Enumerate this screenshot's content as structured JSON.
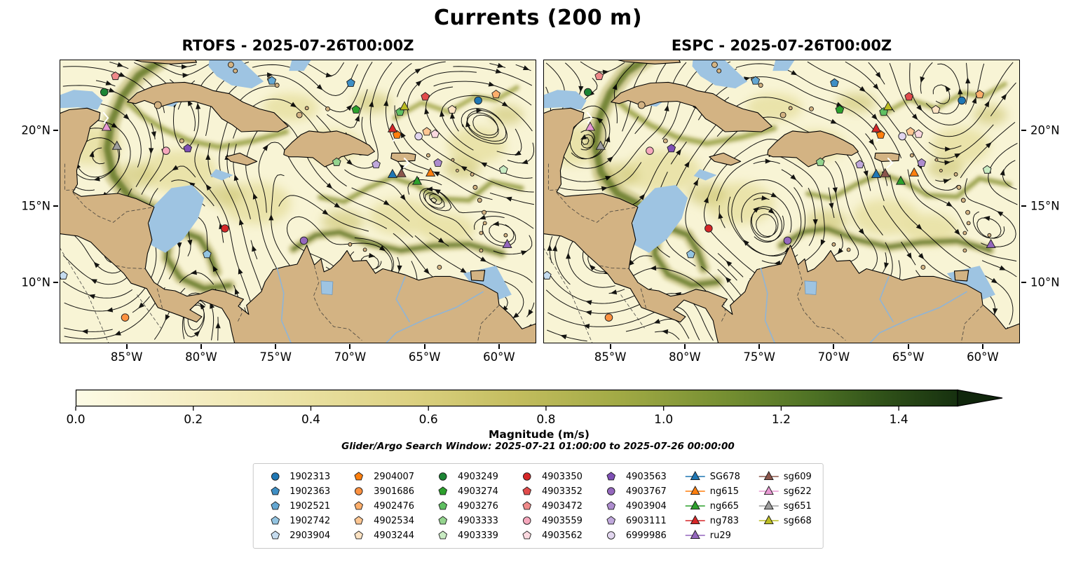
{
  "title": "Currents (200 m)",
  "panels": [
    {
      "title": "RTOFS - 2025-07-26T00:00Z",
      "model": "RTOFS"
    },
    {
      "title": "ESPC - 2025-07-26T00:00Z",
      "model": "ESPC"
    }
  ],
  "axes": {
    "lat_ticks": [
      "20°N",
      "15°N",
      "10°N"
    ],
    "lon_ticks": [
      "85°W",
      "80°W",
      "75°W",
      "70°W",
      "65°W",
      "60°W"
    ]
  },
  "colorbar": {
    "label": "Magnitude (m/s)",
    "ticks": [
      "0.0",
      "0.2",
      "0.4",
      "0.6",
      "0.8",
      "1.0",
      "1.2",
      "1.4"
    ],
    "arrow_color": "#10260c",
    "gradient": [
      [
        "0%",
        "#fdfbe6"
      ],
      [
        "12%",
        "#f6efc6"
      ],
      [
        "25%",
        "#ebe2a4"
      ],
      [
        "38%",
        "#dcd181"
      ],
      [
        "50%",
        "#c3bd5e"
      ],
      [
        "62%",
        "#a0a944"
      ],
      [
        "74%",
        "#748e31"
      ],
      [
        "84%",
        "#4c7024"
      ],
      [
        "92%",
        "#2e4f18"
      ],
      [
        "100%",
        "#16300f"
      ]
    ]
  },
  "search_window": "Glider/Argo Search Window: 2025-07-21 01:00:00 to 2025-07-26 00:00:00",
  "chart_data": {
    "type": "map-streamplot",
    "title": "Currents (200 m)",
    "depth_m": 200,
    "models": [
      "RTOFS",
      "ESPC"
    ],
    "valid_time": "2025-07-26T00:00Z",
    "extent": {
      "lon": [
        -89.5,
        -57.5
      ],
      "lat": [
        6.0,
        24.64
      ]
    },
    "lon_tick_values": [
      -85,
      -80,
      -75,
      -70,
      -65,
      -60
    ],
    "lat_tick_values": [
      20,
      15,
      10
    ],
    "colorbar_range": [
      0,
      1.5
    ],
    "colors": {
      "ocean": "#f8f4d5",
      "land": "#d3b383",
      "shallow": "#9ec4e2",
      "river": "#8fb4d6",
      "mottle": "#e7e0a2",
      "mottle_dark": "#d2ca7e",
      "streak": "#6d7e31",
      "streak_halo": "#b9b56b"
    },
    "platforms": [
      {
        "id": "1902313",
        "type": "argo",
        "marker": "circle",
        "color": "#1f77b4",
        "lon": -61.4,
        "lat": 21.95
      },
      {
        "id": "1902363",
        "type": "argo",
        "marker": "pentagon",
        "color": "#3f8fc5",
        "lon": -69.95,
        "lat": 23.1
      },
      {
        "id": "1902521",
        "type": "argo",
        "marker": "pentagon",
        "color": "#64a7d2",
        "lon": -75.25,
        "lat": 23.25
      },
      {
        "id": "1902742",
        "type": "argo",
        "marker": "pentagon",
        "color": "#93c4e1",
        "lon": -79.6,
        "lat": 11.85
      },
      {
        "id": "2903904",
        "type": "argo",
        "marker": "pentagon",
        "color": "#c6dcef",
        "lon": -89.25,
        "lat": 10.45
      },
      {
        "id": "2904007",
        "type": "argo",
        "marker": "pentagon",
        "color": "#ff7f0e",
        "lon": -66.85,
        "lat": 19.7
      },
      {
        "id": "3901686",
        "type": "argo",
        "marker": "circle",
        "color": "#fd9140",
        "lon": -85.1,
        "lat": 7.7
      },
      {
        "id": "4902476",
        "type": "argo",
        "marker": "pentagon",
        "color": "#fdae6b",
        "lon": -60.2,
        "lat": 22.35
      },
      {
        "id": "4902534",
        "type": "argo",
        "marker": "pentagon",
        "color": "#fdc692",
        "lon": -64.85,
        "lat": 19.9
      },
      {
        "id": "4903244",
        "type": "argo",
        "marker": "pentagon",
        "color": "#fde3c3",
        "lon": -63.15,
        "lat": 21.35
      },
      {
        "id": "4903249",
        "type": "argo",
        "marker": "circle",
        "color": "#1c8434",
        "lon": -86.5,
        "lat": 22.5
      },
      {
        "id": "4903274",
        "type": "argo",
        "marker": "pentagon",
        "color": "#2ca02c",
        "lon": -69.6,
        "lat": 21.35
      },
      {
        "id": "4903276",
        "type": "argo",
        "marker": "pentagon",
        "color": "#5fbf61",
        "lon": -66.65,
        "lat": 21.2
      },
      {
        "id": "4903333",
        "type": "argo",
        "marker": "pentagon",
        "color": "#94d48e",
        "lon": -70.9,
        "lat": 17.9
      },
      {
        "id": "4903339",
        "type": "argo",
        "marker": "pentagon",
        "color": "#c9ecc3",
        "lon": -59.7,
        "lat": 17.4
      },
      {
        "id": "4903350",
        "type": "argo",
        "marker": "circle",
        "color": "#d62728",
        "lon": -78.4,
        "lat": 13.55
      },
      {
        "id": "4903352",
        "type": "argo",
        "marker": "pentagon",
        "color": "#e14b4b",
        "lon": -64.95,
        "lat": 22.2
      },
      {
        "id": "4903472",
        "type": "argo",
        "marker": "pentagon",
        "color": "#ef8a8a",
        "lon": -85.75,
        "lat": 23.55
      },
      {
        "id": "4903559",
        "type": "argo",
        "marker": "circle",
        "color": "#f6a8bd",
        "lon": -82.35,
        "lat": 18.65
      },
      {
        "id": "4903562",
        "type": "argo",
        "marker": "pentagon",
        "color": "#fbd9e0",
        "lon": -64.3,
        "lat": 19.75
      },
      {
        "id": "4903563",
        "type": "argo",
        "marker": "pentagon",
        "color": "#7e4fb5",
        "lon": -80.9,
        "lat": 18.8
      },
      {
        "id": "4903767",
        "type": "argo",
        "marker": "circle",
        "color": "#9467bd",
        "lon": -73.1,
        "lat": 12.75
      },
      {
        "id": "4903904",
        "type": "argo",
        "marker": "pentagon",
        "color": "#ad8cce",
        "lon": -64.1,
        "lat": 17.85
      },
      {
        "id": "6903111",
        "type": "argo",
        "marker": "pentagon",
        "color": "#c0a8dc",
        "lon": -68.25,
        "lat": 17.75
      },
      {
        "id": "6999986",
        "type": "argo",
        "marker": "circle",
        "color": "#e2d6ef",
        "lon": -65.4,
        "lat": 19.6
      },
      {
        "id": "SG678",
        "type": "glider",
        "marker": "triangle",
        "color": "#1f77b4",
        "lon": -67.15,
        "lat": 17.1
      },
      {
        "id": "ng615",
        "type": "glider",
        "marker": "triangle",
        "color": "#ff7f0e",
        "lon": -64.6,
        "lat": 17.2
      },
      {
        "id": "ng665",
        "type": "glider",
        "marker": "triangle",
        "color": "#2ca02c",
        "lon": -65.5,
        "lat": 16.65
      },
      {
        "id": "ng783",
        "type": "glider",
        "marker": "triangle",
        "color": "#d62728",
        "lon": -67.15,
        "lat": 20.1
      },
      {
        "id": "ru29",
        "type": "glider",
        "marker": "triangle",
        "color": "#9467bd",
        "lon": -59.45,
        "lat": 12.5
      },
      {
        "id": "sg609",
        "type": "glider",
        "marker": "triangle",
        "color": "#8c564b",
        "lon": -66.55,
        "lat": 17.15
      },
      {
        "id": "sg622",
        "type": "glider",
        "marker": "triangle",
        "color": "#e89ad4",
        "lon": -86.35,
        "lat": 20.2
      },
      {
        "id": "sg651",
        "type": "glider",
        "marker": "triangle",
        "color": "#9e9e9e",
        "lon": -85.65,
        "lat": 18.95
      },
      {
        "id": "sg668",
        "type": "glider",
        "marker": "triangle",
        "color": "#bcbd22",
        "lon": -66.35,
        "lat": 21.55
      }
    ]
  }
}
